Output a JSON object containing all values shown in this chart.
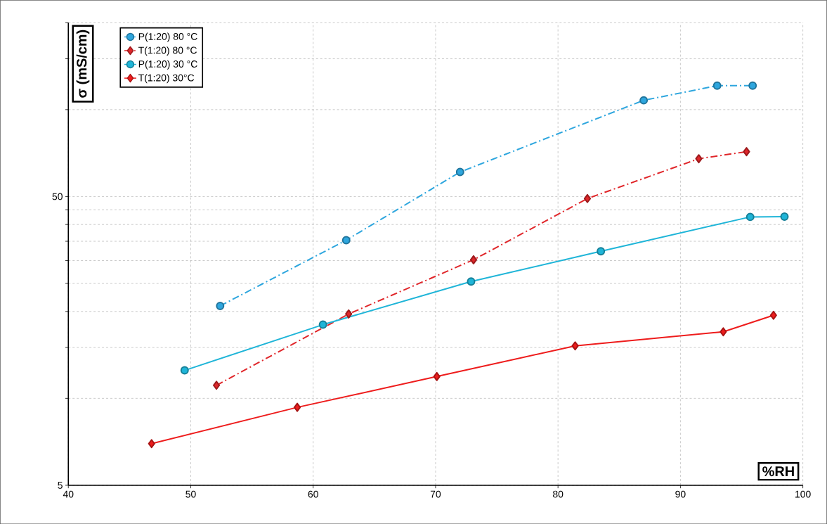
{
  "chart_data": {
    "type": "line",
    "xlabel": "%RH",
    "ylabel": "σ (mS/cm)",
    "log": "y",
    "grid": true,
    "legend": "top left",
    "xlim": [
      40,
      100
    ],
    "xticks": [
      40,
      50,
      60,
      70,
      80,
      90,
      100
    ],
    "ylim": [
      5,
      200
    ],
    "yticks": [
      5,
      {
        "value": 10,
        "label": null
      },
      {
        "value": 15,
        "label": null
      },
      {
        "value": 20,
        "label": null
      },
      {
        "value": 25,
        "label": null
      },
      {
        "value": 30,
        "label": null
      },
      {
        "value": 35,
        "label": null
      },
      {
        "value": 40,
        "label": null
      },
      {
        "value": 45,
        "label": null
      },
      50,
      {
        "value": 100,
        "label": null
      },
      {
        "value": 150,
        "label": null
      },
      {
        "value": 200,
        "label": null
      }
    ],
    "series": [
      {
        "name": "P(1:20) 80 °C",
        "color": "#2ea6de",
        "marker": "circle",
        "line_style": "dashed",
        "x": [
          52.4,
          62.7,
          72.0,
          87.0,
          93.0,
          95.9
        ],
        "values": [
          20.9,
          35.3,
          60.8,
          107.7,
          121,
          121
        ]
      },
      {
        "name": "T(1:20) 80 °C",
        "color": "#e0262a",
        "marker": "diamond",
        "line_style": "dashed",
        "x": [
          52.1,
          62.9,
          73.1,
          82.4,
          91.5,
          95.4
        ],
        "values": [
          11.1,
          19.6,
          30.2,
          49.2,
          67.6,
          71.5
        ]
      },
      {
        "name": "P(1:20) 30 °C",
        "color": "#1fb5d8",
        "marker": "circle",
        "line_style": "solid",
        "x": [
          49.5,
          60.8,
          72.9,
          83.5,
          95.7,
          98.5
        ],
        "values": [
          12.5,
          18.0,
          25.4,
          32.3,
          42.5,
          42.6
        ]
      },
      {
        "name": "T(1:20) 30°C",
        "color": "#ee1c1c",
        "marker": "diamond",
        "line_style": "solid",
        "x": [
          46.8,
          58.7,
          70.1,
          81.4,
          93.5,
          97.6
        ],
        "values": [
          6.97,
          9.31,
          11.9,
          15.2,
          17.0,
          19.4
        ]
      }
    ]
  }
}
